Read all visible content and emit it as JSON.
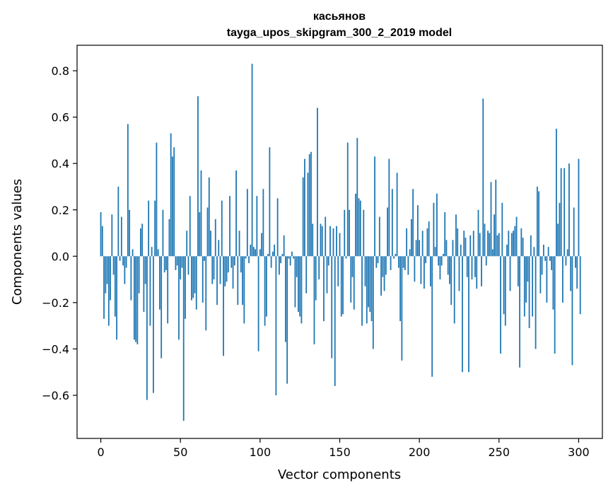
{
  "chart_data": {
    "type": "bar",
    "title": "касьянов",
    "subtitle": "tayga_upos_skipgram_300_2_2019 model",
    "xlabel": "Vector components",
    "ylabel": "Components values",
    "xlim": [
      -14.9,
      314.9
    ],
    "ylim": [
      -0.786,
      0.91
    ],
    "xticks": [
      0,
      50,
      100,
      150,
      200,
      250,
      300
    ],
    "xtick_labels": [
      "0",
      "50",
      "100",
      "150",
      "200",
      "250",
      "300"
    ],
    "yticks": [
      -0.6,
      -0.4,
      -0.2,
      0.0,
      0.2,
      0.4,
      0.6,
      0.8
    ],
    "ytick_labels": [
      "−0.6",
      "−0.4",
      "−0.2",
      "0.0",
      "0.2",
      "0.4",
      "0.6",
      "0.8"
    ],
    "grid": false,
    "bar_color": "#1f77b4",
    "values": [
      0.19,
      0.13,
      -0.27,
      -0.16,
      -0.12,
      -0.3,
      -0.19,
      0.18,
      -0.08,
      -0.26,
      -0.36,
      0.3,
      -0.02,
      0.17,
      -0.04,
      -0.12,
      -0.05,
      0.57,
      0.2,
      -0.19,
      0.03,
      -0.36,
      -0.37,
      -0.38,
      -0.16,
      0.12,
      0.14,
      -0.24,
      -0.12,
      -0.62,
      0.24,
      -0.3,
      0.04,
      -0.59,
      0.24,
      0.49,
      0.03,
      -0.23,
      -0.44,
      0.2,
      -0.07,
      -0.06,
      -0.29,
      0.16,
      0.53,
      0.43,
      0.47,
      -0.06,
      -0.04,
      -0.36,
      -0.1,
      -0.05,
      -0.71,
      -0.27,
      0.11,
      -0.08,
      0.26,
      -0.19,
      -0.18,
      -0.16,
      -0.23,
      0.69,
      0.19,
      0.37,
      -0.2,
      -0.02,
      -0.32,
      0.21,
      0.34,
      0.11,
      -0.12,
      -0.1,
      0.16,
      -0.21,
      0.07,
      -0.12,
      0.24,
      -0.43,
      -0.13,
      -0.11,
      -0.07,
      0.26,
      -0.05,
      -0.14,
      -0.04,
      0.37,
      -0.21,
      0.11,
      -0.07,
      -0.21,
      -0.29,
      -0.01,
      0.29,
      -0.03,
      0.05,
      0.83,
      0.04,
      0.03,
      0.26,
      -0.41,
      0.03,
      0.1,
      0.29,
      -0.3,
      -0.26,
      0.01,
      0.47,
      -0.05,
      0.02,
      0.05,
      -0.6,
      0.25,
      -0.08,
      -0.03,
      0.01,
      0.09,
      -0.37,
      -0.55,
      -0.01,
      -0.04,
      0.02,
      -0.01,
      -0.22,
      -0.09,
      -0.24,
      -0.26,
      -0.29,
      0.34,
      0.42,
      -0.16,
      0.36,
      0.44,
      0.45,
      0.14,
      -0.38,
      -0.19,
      0.64,
      -0.1,
      0.14,
      0.13,
      -0.28,
      0.17,
      -0.16,
      -0.04,
      0.13,
      -0.44,
      0.12,
      -0.56,
      0.13,
      -0.13,
      0.1,
      -0.26,
      -0.25,
      0.2,
      -0.01,
      0.49,
      0.2,
      -0.2,
      -0.09,
      -0.23,
      0.27,
      0.51,
      0.25,
      0.24,
      -0.3,
      0.2,
      -0.13,
      -0.29,
      -0.22,
      -0.24,
      -0.28,
      -0.4,
      0.43,
      -0.05,
      -0.03,
      0.17,
      -0.17,
      -0.09,
      -0.15,
      -0.08,
      0.21,
      0.42,
      -0.06,
      0.29,
      -0.01,
      0.01,
      0.36,
      -0.05,
      -0.28,
      -0.45,
      -0.05,
      -0.06,
      0.12,
      -0.08,
      0.03,
      0.16,
      0.29,
      -0.11,
      0.07,
      0.22,
      0.07,
      -0.12,
      0.11,
      -0.14,
      -0.03,
      0.12,
      0.15,
      -0.13,
      -0.52,
      0.23,
      0.04,
      0.27,
      -0.04,
      -0.1,
      -0.04,
      0.01,
      0.19,
      0.07,
      -0.08,
      -0.12,
      -0.21,
      0.07,
      -0.29,
      0.18,
      0.12,
      -0.15,
      0.05,
      -0.5,
      0.11,
      0.08,
      -0.09,
      -0.5,
      0.09,
      -0.1,
      0.11,
      -0.09,
      -0.14,
      0.2,
      0.1,
      -0.13,
      0.68,
      0.14,
      -0.04,
      0.11,
      0.1,
      0.32,
      0.03,
      0.18,
      0.33,
      0.09,
      0.1,
      -0.42,
      0.23,
      -0.25,
      -0.3,
      0.05,
      0.11,
      -0.15,
      0.1,
      0.11,
      0.13,
      0.17,
      -0.13,
      -0.48,
      0.12,
      0.08,
      -0.26,
      -0.2,
      -0.11,
      -0.31,
      0.09,
      -0.26,
      0.04,
      -0.4,
      0.3,
      0.28,
      -0.16,
      -0.08,
      0.05,
      -0.02,
      -0.2,
      0.04,
      -0.02,
      -0.06,
      -0.23,
      -0.42,
      0.55,
      0.14,
      0.23,
      0.38,
      -0.2,
      0.38,
      -0.04,
      0.03,
      0.4,
      -0.15,
      -0.47,
      0.21,
      -0.05,
      -0.14,
      0.42,
      -0.25
    ]
  }
}
